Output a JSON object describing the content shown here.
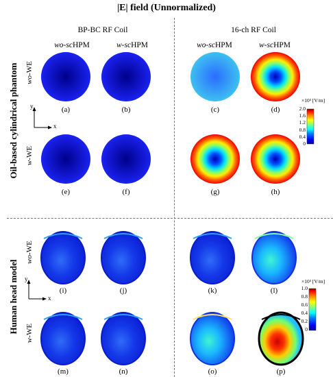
{
  "title": "|E| field (Unnormalized)",
  "columns": {
    "left_coil": "BP-BC RF Coil",
    "right_coil": "16-ch RF Coil",
    "sub_wo_prefix": "wo-sc",
    "sub_w_prefix": "w-sc",
    "sub_suffix": "HPM"
  },
  "rows": {
    "wo_prefix": "wo",
    "w_prefix": "w",
    "suffix": "-WE"
  },
  "sections": {
    "top": "Oil-based cylindrical phantom",
    "bottom": "Human head model"
  },
  "axes": {
    "y": "y",
    "x": "x"
  },
  "captions": [
    "(a)",
    "(b)",
    "(c)",
    "(d)",
    "(e)",
    "(f)",
    "(g)",
    "(h)",
    "(i)",
    "(j)",
    "(k)",
    "(l)",
    "(m)",
    "(n)",
    "(o)",
    "(p)"
  ],
  "colorbar_top": {
    "unit": "×10³ [V/m]",
    "ticks": [
      "2.0",
      "1.6",
      "1.2",
      "0.8",
      "0.4",
      "0"
    ]
  },
  "colorbar_bottom": {
    "unit": "×10³ [V/m]",
    "ticks": [
      "1.0",
      "0.8",
      "0.6",
      "0.4",
      "0.2",
      "0"
    ]
  },
  "colors": {
    "jet": [
      "#00008f",
      "#0000ff",
      "#0080ff",
      "#00ffff",
      "#80ff80",
      "#ffff00",
      "#ff8000",
      "#ff0000",
      "#800000"
    ]
  }
}
